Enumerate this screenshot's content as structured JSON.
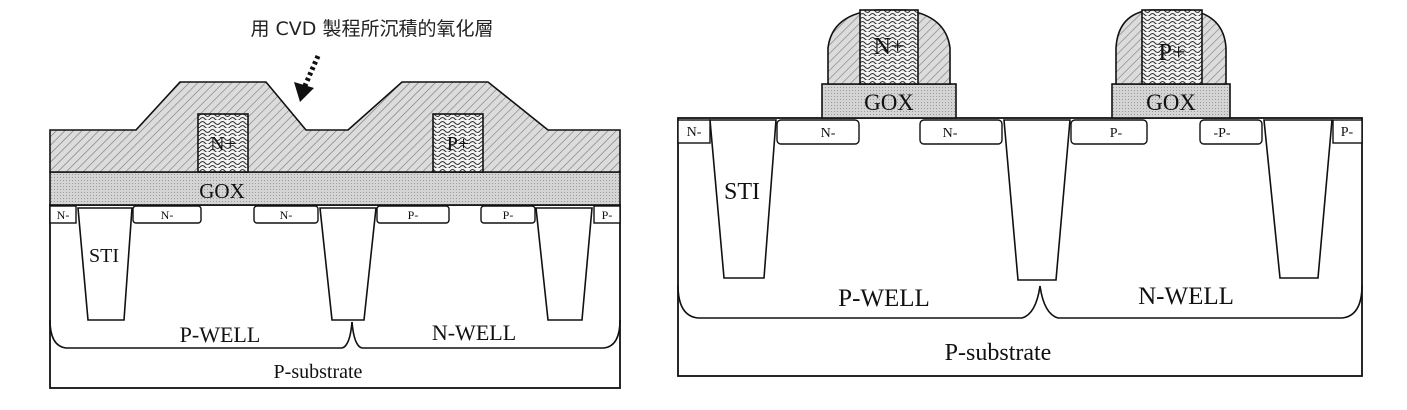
{
  "colors": {
    "line": "#111111",
    "hatch_fill": "#d8d8d8",
    "gox_fill": "#d0d0d0",
    "background": "#ffffff"
  },
  "left_diagram": {
    "caption": "用 CVD 製程所沉積的氧化層",
    "arrow_icon": "dotted-arrow-icon",
    "gate_labels": [
      "N+",
      "P+"
    ],
    "gox_label": "GOX",
    "sti_label": "STI",
    "ldd_labels": [
      "N-",
      "N-",
      "N-",
      "P-",
      "P-",
      "P-"
    ],
    "well_labels": [
      "P-WELL",
      "N-WELL"
    ],
    "substrate_label": "P-substrate"
  },
  "right_diagram": {
    "gate_labels": [
      "N+",
      "P+"
    ],
    "gox_labels": [
      "GOX",
      "GOX"
    ],
    "sti_label": "STI",
    "ldd_labels": [
      "N-",
      "N-",
      "N-",
      "P-",
      "-P-",
      "P-"
    ],
    "well_labels": [
      "P-WELL",
      "N-WELL"
    ],
    "substrate_label": "P-substrate"
  }
}
